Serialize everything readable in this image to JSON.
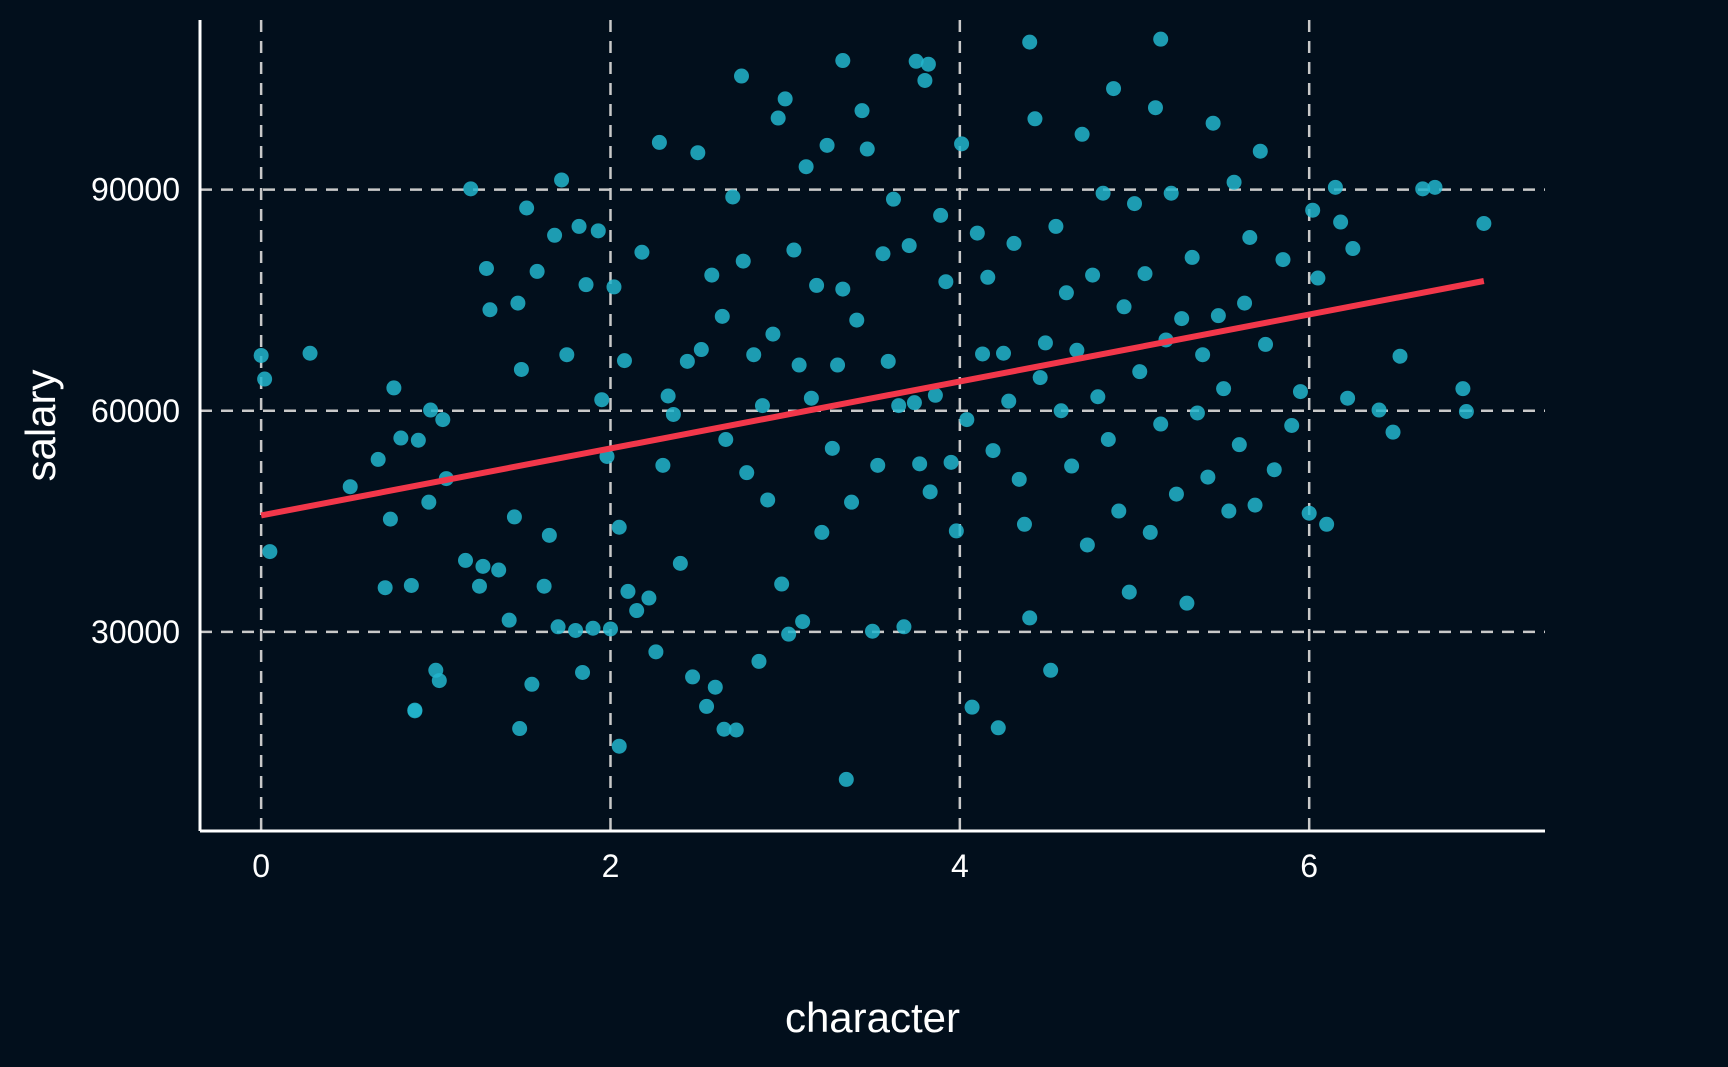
{
  "chart_data": {
    "type": "scatter",
    "xlabel": "character",
    "ylabel": "salary",
    "xlim": [
      -0.35,
      7.35
    ],
    "ylim": [
      3000,
      113000
    ],
    "x_ticks": [
      0,
      2,
      4,
      6
    ],
    "y_ticks": [
      30000,
      60000,
      90000
    ],
    "grid": true,
    "colors": {
      "background": "#020f1c",
      "points": "#22b5cc",
      "fit_line": "#f2374a",
      "grid": "#c9c9c9",
      "axis": "#ffffff",
      "text": "#ffffff"
    },
    "fit_line": {
      "x": [
        0,
        7
      ],
      "y": [
        45800,
        77600
      ]
    },
    "points": {
      "x": [
        0.0,
        0.02,
        0.05,
        0.28,
        0.51,
        0.67,
        0.71,
        0.74,
        0.76,
        0.8,
        0.86,
        0.88,
        0.9,
        0.96,
        0.97,
        1.0,
        1.02,
        1.04,
        1.06,
        1.17,
        1.2,
        1.25,
        1.27,
        1.29,
        1.31,
        1.36,
        1.42,
        1.45,
        1.47,
        1.49,
        1.52,
        1.55,
        1.58,
        1.62,
        1.65,
        1.68,
        1.7,
        1.72,
        1.75,
        1.8,
        1.82,
        1.84,
        1.86,
        1.9,
        1.93,
        1.95,
        1.98,
        2.0,
        2.02,
        2.05,
        2.08,
        2.1,
        2.15,
        2.18,
        2.22,
        2.26,
        2.28,
        2.3,
        2.33,
        2.36,
        2.4,
        2.44,
        2.47,
        2.5,
        2.52,
        2.55,
        2.58,
        2.6,
        2.64,
        2.66,
        2.7,
        2.72,
        2.76,
        2.78,
        2.82,
        2.85,
        2.87,
        2.9,
        2.93,
        2.96,
        2.98,
        3.0,
        3.02,
        3.05,
        3.08,
        3.1,
        3.12,
        3.15,
        3.18,
        3.21,
        3.24,
        3.27,
        3.3,
        3.33,
        3.35,
        3.38,
        3.41,
        3.44,
        3.47,
        3.5,
        3.53,
        3.56,
        3.59,
        3.62,
        3.65,
        3.68,
        3.71,
        3.74,
        3.77,
        3.8,
        3.83,
        3.86,
        3.89,
        3.92,
        3.95,
        3.98,
        4.01,
        4.04,
        4.07,
        4.1,
        4.13,
        4.16,
        4.19,
        4.22,
        4.25,
        4.28,
        4.31,
        4.34,
        4.37,
        4.4,
        4.43,
        4.46,
        4.49,
        4.52,
        4.55,
        4.58,
        4.61,
        4.64,
        4.67,
        4.7,
        4.73,
        4.76,
        4.79,
        4.82,
        4.85,
        4.88,
        4.91,
        4.94,
        4.97,
        5.0,
        5.03,
        5.06,
        5.09,
        5.12,
        5.15,
        5.18,
        5.21,
        5.24,
        5.27,
        5.3,
        5.33,
        5.36,
        5.39,
        5.42,
        5.45,
        5.48,
        5.51,
        5.54,
        5.57,
        5.6,
        5.63,
        5.66,
        5.69,
        5.72,
        5.75,
        5.8,
        5.85,
        5.9,
        5.95,
        6.0,
        6.02,
        6.05,
        6.1,
        6.15,
        6.18,
        6.22,
        6.25,
        6.4,
        6.48,
        6.52,
        6.65,
        6.72,
        6.88,
        6.9,
        7.0,
        3.33,
        3.75,
        3.82,
        5.15,
        4.4,
        2.75,
        2.05,
        2.65,
        0.88,
        1.48
      ],
      "y": [
        67500,
        64300,
        40900,
        67800,
        49700,
        53400,
        36000,
        45300,
        63100,
        56300,
        36300,
        19300,
        56000,
        47600,
        60100,
        24800,
        23400,
        58800,
        50800,
        39700,
        90100,
        36200,
        38900,
        79300,
        73700,
        38400,
        31600,
        45600,
        74600,
        65600,
        87500,
        22900,
        78900,
        36200,
        43100,
        83800,
        30700,
        91300,
        67600,
        30200,
        85000,
        24500,
        77100,
        30500,
        84400,
        61500,
        53800,
        30400,
        76800,
        44200,
        66800,
        35500,
        32900,
        81500,
        34600,
        27300,
        96400,
        52600,
        62000,
        59500,
        39300,
        66700,
        23900,
        95000,
        68300,
        19900,
        78400,
        22500,
        72800,
        56100,
        89000,
        16700,
        80300,
        51600,
        67600,
        26000,
        60700,
        47900,
        70400,
        99700,
        36500,
        102300,
        29700,
        81800,
        66200,
        31400,
        93100,
        61700,
        77000,
        43500,
        96000,
        54900,
        66200,
        76500,
        10000,
        47600,
        72300,
        100700,
        95500,
        30100,
        52600,
        81300,
        66700,
        88700,
        60700,
        30700,
        82400,
        61100,
        52800,
        104800,
        49000,
        62100,
        86500,
        77500,
        53000,
        43700,
        96200,
        58800,
        19800,
        84100,
        67700,
        78100,
        54600,
        17000,
        67800,
        61300,
        82700,
        50700,
        44600,
        31900,
        99600,
        64500,
        69200,
        24800,
        85000,
        60000,
        76000,
        52500,
        68200,
        97500,
        41800,
        78400,
        61900,
        89500,
        56100,
        103700,
        46400,
        74100,
        35400,
        88100,
        65300,
        78600,
        43500,
        101100,
        58200,
        69600,
        89500,
        48700,
        72500,
        33900,
        80800,
        59700,
        67600,
        51000,
        99000,
        72900,
        63000,
        46400,
        91000,
        55400,
        74600,
        83500,
        47200,
        95200,
        69000,
        52000,
        80500,
        58000,
        62600,
        46100,
        87200,
        78000,
        44600,
        90300,
        85600,
        61700,
        82000,
        60100,
        57100,
        67400,
        90100,
        90300,
        63000,
        59900,
        85400,
        107500,
        107400,
        107000,
        110400,
        110000,
        105400,
        14500,
        16800,
        19400,
        16900
      ]
    }
  }
}
